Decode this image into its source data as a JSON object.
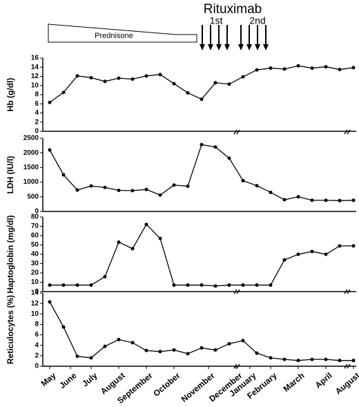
{
  "annotations": {
    "steroid": "Prednisone",
    "drug": "Rituximab",
    "first": "1st",
    "second": "2nd"
  },
  "chart_data": [
    {
      "type": "line",
      "ylabel": "Hb (g/dl)",
      "color": "#000000",
      "xlim": [
        0,
        22
      ],
      "x": [
        0,
        1,
        2,
        3,
        4,
        5,
        6,
        7,
        8,
        9,
        10,
        11,
        12,
        13,
        14,
        15,
        16,
        17,
        18,
        19,
        20,
        21,
        22
      ],
      "values": [
        6.3,
        8.5,
        12.1,
        11.7,
        10.9,
        11.6,
        11.4,
        12.1,
        12.4,
        10.4,
        8.4,
        7.0,
        10.6,
        10.3,
        11.9,
        13.4,
        13.8,
        13.6,
        14.3,
        13.8,
        14.1,
        13.5,
        13.9
      ],
      "ylim": [
        0,
        16
      ],
      "yticks": [
        0,
        2,
        4,
        6,
        8,
        10,
        12,
        14,
        16
      ]
    },
    {
      "type": "line",
      "ylabel": "LDH (IU/l)",
      "color": "#000000",
      "xlim": [
        0,
        22
      ],
      "x": [
        0,
        1,
        2,
        3,
        4,
        5,
        6,
        7,
        8,
        9,
        10,
        11,
        12,
        13,
        14,
        15,
        16,
        17,
        18,
        19,
        20,
        21,
        22
      ],
      "values": [
        2100,
        1250,
        730,
        870,
        820,
        720,
        710,
        750,
        560,
        900,
        860,
        2280,
        2200,
        1820,
        1050,
        880,
        650,
        400,
        500,
        380,
        380,
        370,
        380
      ],
      "ylim": [
        0,
        2500
      ],
      "yticks": [
        0,
        500,
        1000,
        1500,
        2000,
        2500
      ]
    },
    {
      "type": "line",
      "ylabel": "Haptoglobin (mg/dl)",
      "color": "#000000",
      "xlim": [
        0,
        22
      ],
      "x": [
        0,
        1,
        2,
        3,
        4,
        5,
        6,
        7,
        8,
        9,
        10,
        11,
        12,
        13,
        14,
        15,
        16,
        17,
        18,
        19,
        20,
        21,
        22
      ],
      "values": [
        7,
        7,
        7,
        7,
        16,
        53,
        46,
        72,
        57,
        7,
        7,
        7,
        6,
        7,
        7,
        7,
        7,
        34,
        40,
        43,
        40,
        49,
        49
      ],
      "ylim": [
        0,
        80
      ],
      "yticks": [
        0,
        10,
        20,
        30,
        40,
        50,
        60,
        70,
        80
      ]
    },
    {
      "type": "line",
      "ylabel": "Reticulocytes (%)",
      "color": "#000000",
      "xlim": [
        0,
        22
      ],
      "x": [
        0,
        1,
        2,
        3,
        4,
        5,
        6,
        7,
        8,
        9,
        10,
        11,
        12,
        13,
        14,
        15,
        16,
        17,
        18,
        19,
        20,
        21,
        22
      ],
      "values": [
        12.3,
        7.5,
        1.9,
        1.6,
        3.8,
        5.1,
        4.5,
        3.0,
        2.8,
        3.1,
        2.4,
        3.5,
        3.1,
        4.3,
        4.9,
        2.5,
        1.6,
        1.3,
        1.1,
        1.3,
        1.3,
        1.1,
        1.1
      ],
      "ylim": [
        0,
        14
      ],
      "yticks": [
        0,
        2,
        4,
        6,
        8,
        10,
        12,
        14
      ],
      "xticks": [
        {
          "value": 0,
          "label": "May"
        },
        {
          "value": 1.5,
          "label": "June"
        },
        {
          "value": 3,
          "label": "July"
        },
        {
          "value": 5,
          "label": "August"
        },
        {
          "value": 7,
          "label": "September"
        },
        {
          "value": 9,
          "label": "October"
        },
        {
          "value": 11.5,
          "label": "November"
        },
        {
          "value": 13.5,
          "label": "December"
        },
        {
          "value": 14.5,
          "label": "January"
        },
        {
          "value": 16,
          "label": "February"
        },
        {
          "value": 18,
          "label": "March"
        },
        {
          "value": 20,
          "label": "April"
        },
        {
          "value": 22,
          "label": "August"
        }
      ]
    }
  ]
}
